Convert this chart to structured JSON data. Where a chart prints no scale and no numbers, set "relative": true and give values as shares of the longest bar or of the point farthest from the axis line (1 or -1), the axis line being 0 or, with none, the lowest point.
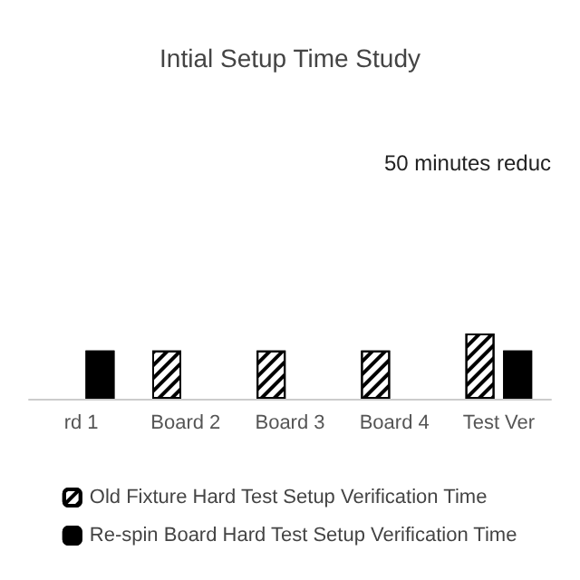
{
  "chart_data": {
    "type": "bar",
    "title": "Intial Setup Time Study",
    "annotations": [
      "50 minutes reduc"
    ],
    "categories": [
      "rd 1",
      "Board 2",
      "Board 3",
      "Board 4",
      "Test Ver"
    ],
    "series": [
      {
        "name": "Old Fixture Hard Test Setup Verification Time",
        "color": "#ffffff",
        "values": [
          null,
          0.74,
          0.74,
          0.74,
          1
        ]
      },
      {
        "name": "Re-spin Board Hard Test Setup Verification Time",
        "color": "#000000",
        "values": [
          0.74,
          null,
          null,
          null,
          0.74
        ]
      }
    ],
    "relative": true,
    "legend": "bottom"
  }
}
